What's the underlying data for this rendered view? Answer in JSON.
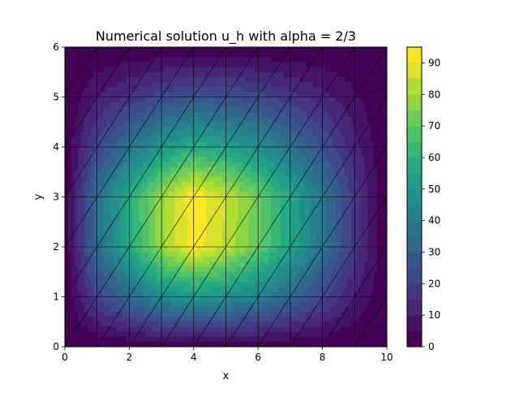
{
  "chart_data": {
    "type": "heatmap",
    "title": "Numerical solution u_h with alpha = 2/3",
    "xlabel": "x",
    "ylabel": "y",
    "xlim": [
      0,
      10
    ],
    "ylim": [
      0,
      6
    ],
    "x_ticks": [
      "0",
      "2",
      "4",
      "6",
      "8",
      "10"
    ],
    "y_ticks": [
      "0",
      "1",
      "2",
      "3",
      "4",
      "5",
      "6"
    ],
    "colorbar_ticks": [
      "0",
      "10",
      "20",
      "30",
      "40",
      "50",
      "60",
      "70",
      "80",
      "90"
    ],
    "colorbar_range": [
      0,
      95
    ],
    "colormap": "viridis",
    "mesh": {
      "type": "triangular",
      "nx": 10,
      "ny": 6,
      "diagonal": "lower-left to upper-right",
      "line_color": "#000000"
    },
    "field": {
      "nodes_x": [
        0,
        1,
        2,
        3,
        4,
        5,
        6,
        7,
        8,
        9,
        10
      ],
      "nodes_y": [
        0,
        1,
        2,
        3,
        4,
        5,
        6
      ],
      "values": [
        [
          0,
          0,
          0,
          0,
          0,
          0,
          0,
          0,
          0,
          0,
          0
        ],
        [
          0,
          21,
          34,
          46,
          50,
          48,
          42,
          33,
          22,
          10,
          0
        ],
        [
          0,
          34,
          57,
          79,
          93,
          84,
          71,
          55,
          37,
          18,
          0
        ],
        [
          0,
          35,
          58,
          79,
          94,
          85,
          72,
          56,
          38,
          18,
          0
        ],
        [
          0,
          22,
          37,
          50,
          58,
          54,
          47,
          37,
          25,
          12,
          0
        ],
        [
          0,
          10,
          16,
          22,
          26,
          25,
          22,
          17,
          12,
          6,
          0
        ],
        [
          0,
          0,
          0,
          0,
          0,
          0,
          0,
          0,
          0,
          0,
          0
        ]
      ],
      "levels": [
        0,
        5,
        10,
        15,
        20,
        25,
        30,
        35,
        40,
        45,
        50,
        55,
        60,
        65,
        70,
        75,
        80,
        85,
        90,
        95
      ]
    }
  }
}
